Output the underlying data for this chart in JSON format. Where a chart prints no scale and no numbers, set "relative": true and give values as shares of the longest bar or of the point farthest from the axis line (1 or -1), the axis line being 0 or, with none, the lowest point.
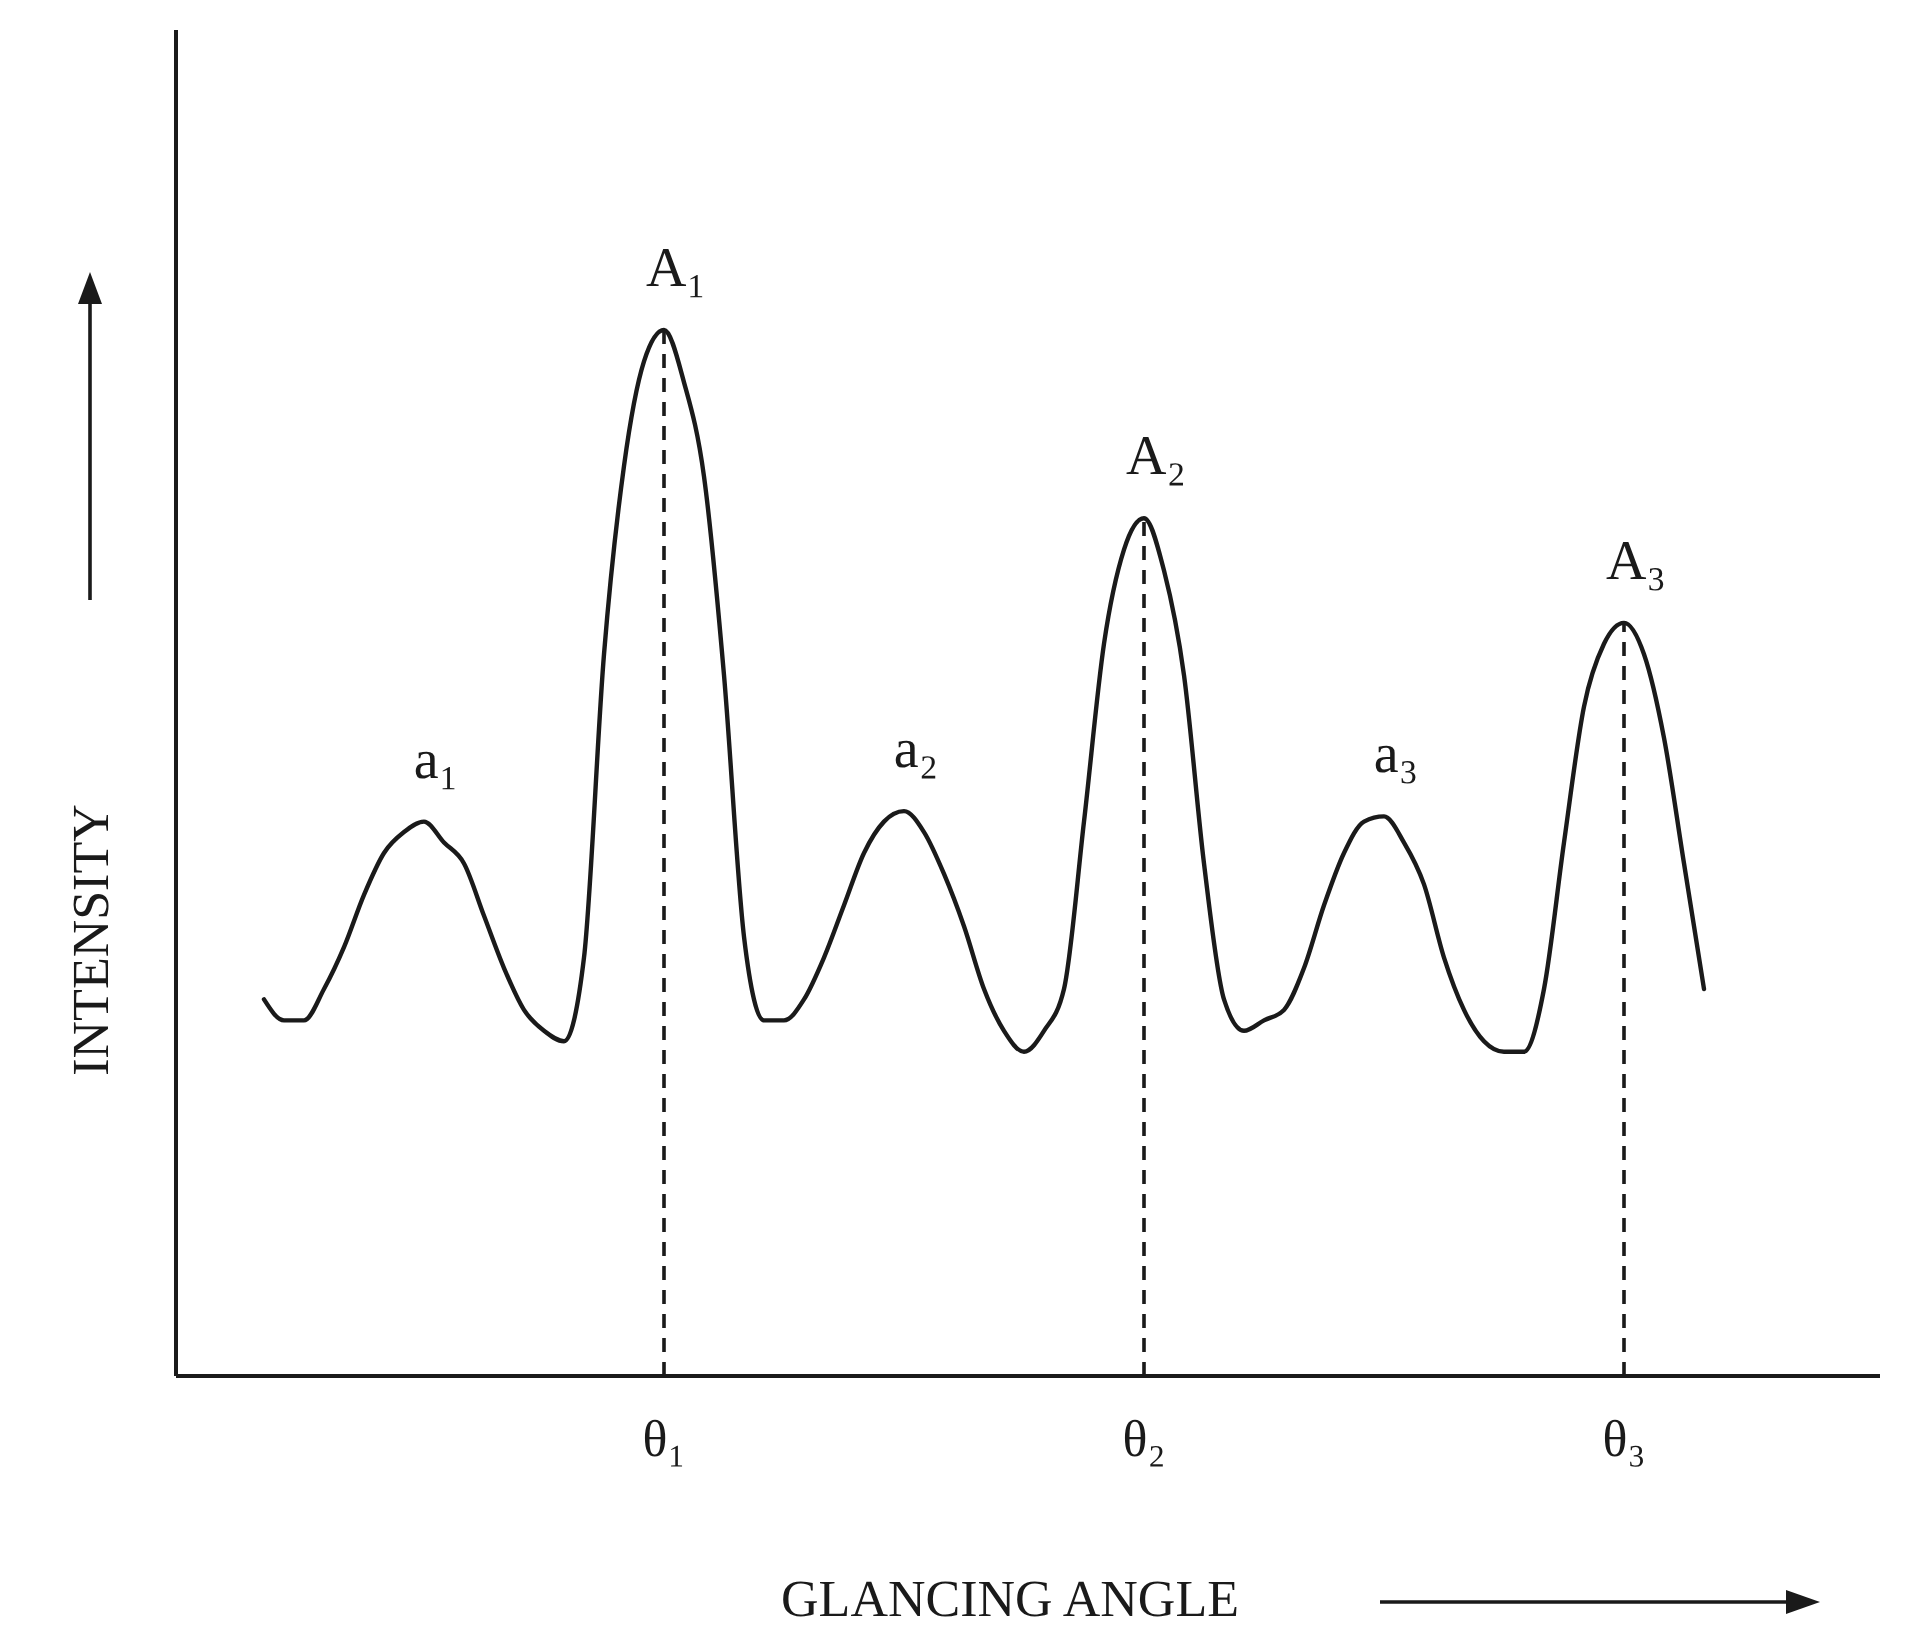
{
  "chart_data": {
    "type": "line",
    "relative": true,
    "xlabel": "GLANCING ANGLE",
    "ylabel": "INTENSITY",
    "color": "#1a1a1a",
    "line_style": "solid",
    "categories": [
      null,
      null,
      null,
      null,
      null,
      null,
      null,
      null,
      null,
      null,
      null,
      null,
      null,
      null,
      null,
      null,
      null,
      null,
      null,
      null,
      "θ₁",
      null,
      null,
      null,
      null,
      null,
      null,
      null,
      null,
      null,
      null,
      null,
      null,
      null,
      null,
      null,
      null,
      null,
      null,
      null,
      null,
      null,
      null,
      null,
      "θ₂",
      null,
      null,
      null,
      null,
      null,
      null,
      null,
      null,
      null,
      null,
      null,
      null,
      null,
      null,
      null,
      null,
      null,
      null,
      null,
      null,
      null,
      null,
      null,
      "θ₃",
      null,
      null,
      null,
      null
    ],
    "values": [
      0.36,
      0.34,
      0.34,
      0.37,
      0.41,
      0.46,
      0.5,
      0.52,
      0.53,
      0.51,
      0.49,
      0.44,
      0.39,
      0.35,
      0.33,
      0.32,
      0.4,
      0.69,
      0.87,
      0.97,
      1,
      0.95,
      0.86,
      0.67,
      0.42,
      0.34,
      0.34,
      0.36,
      0.4,
      0.45,
      0.5,
      0.53,
      0.54,
      0.52,
      0.48,
      0.43,
      0.37,
      0.33,
      0.31,
      0.33,
      0.37,
      0.53,
      0.7,
      0.79,
      0.82,
      0.77,
      0.67,
      0.49,
      0.36,
      0.33,
      0.34,
      0.35,
      0.39,
      0.45,
      0.5,
      0.53,
      0.535,
      0.51,
      0.47,
      0.4,
      0.35,
      0.32,
      0.31,
      0.31,
      0.37,
      0.51,
      0.64,
      0.7,
      0.72,
      0.69,
      0.61,
      0.49,
      0.37
    ],
    "annotations": [
      {
        "text": "A₁",
        "x": "θ₁",
        "y": 1
      },
      {
        "text": "A₂",
        "x": "θ₂",
        "y": 0.82
      },
      {
        "text": "A₃",
        "x": "θ₃",
        "y": 0.72
      },
      {
        "text": "a₁",
        "y": 0.53
      },
      {
        "text": "a₂",
        "y": 0.54
      },
      {
        "text": "a₃",
        "y": 0.535
      }
    ],
    "ref_lines": [
      {
        "axis": "x",
        "value": "θ₁",
        "line_style": "dashed"
      },
      {
        "axis": "x",
        "value": "θ₂",
        "line_style": "dashed"
      },
      {
        "axis": "x",
        "value": "θ₃",
        "line_style": "dashed"
      }
    ]
  }
}
